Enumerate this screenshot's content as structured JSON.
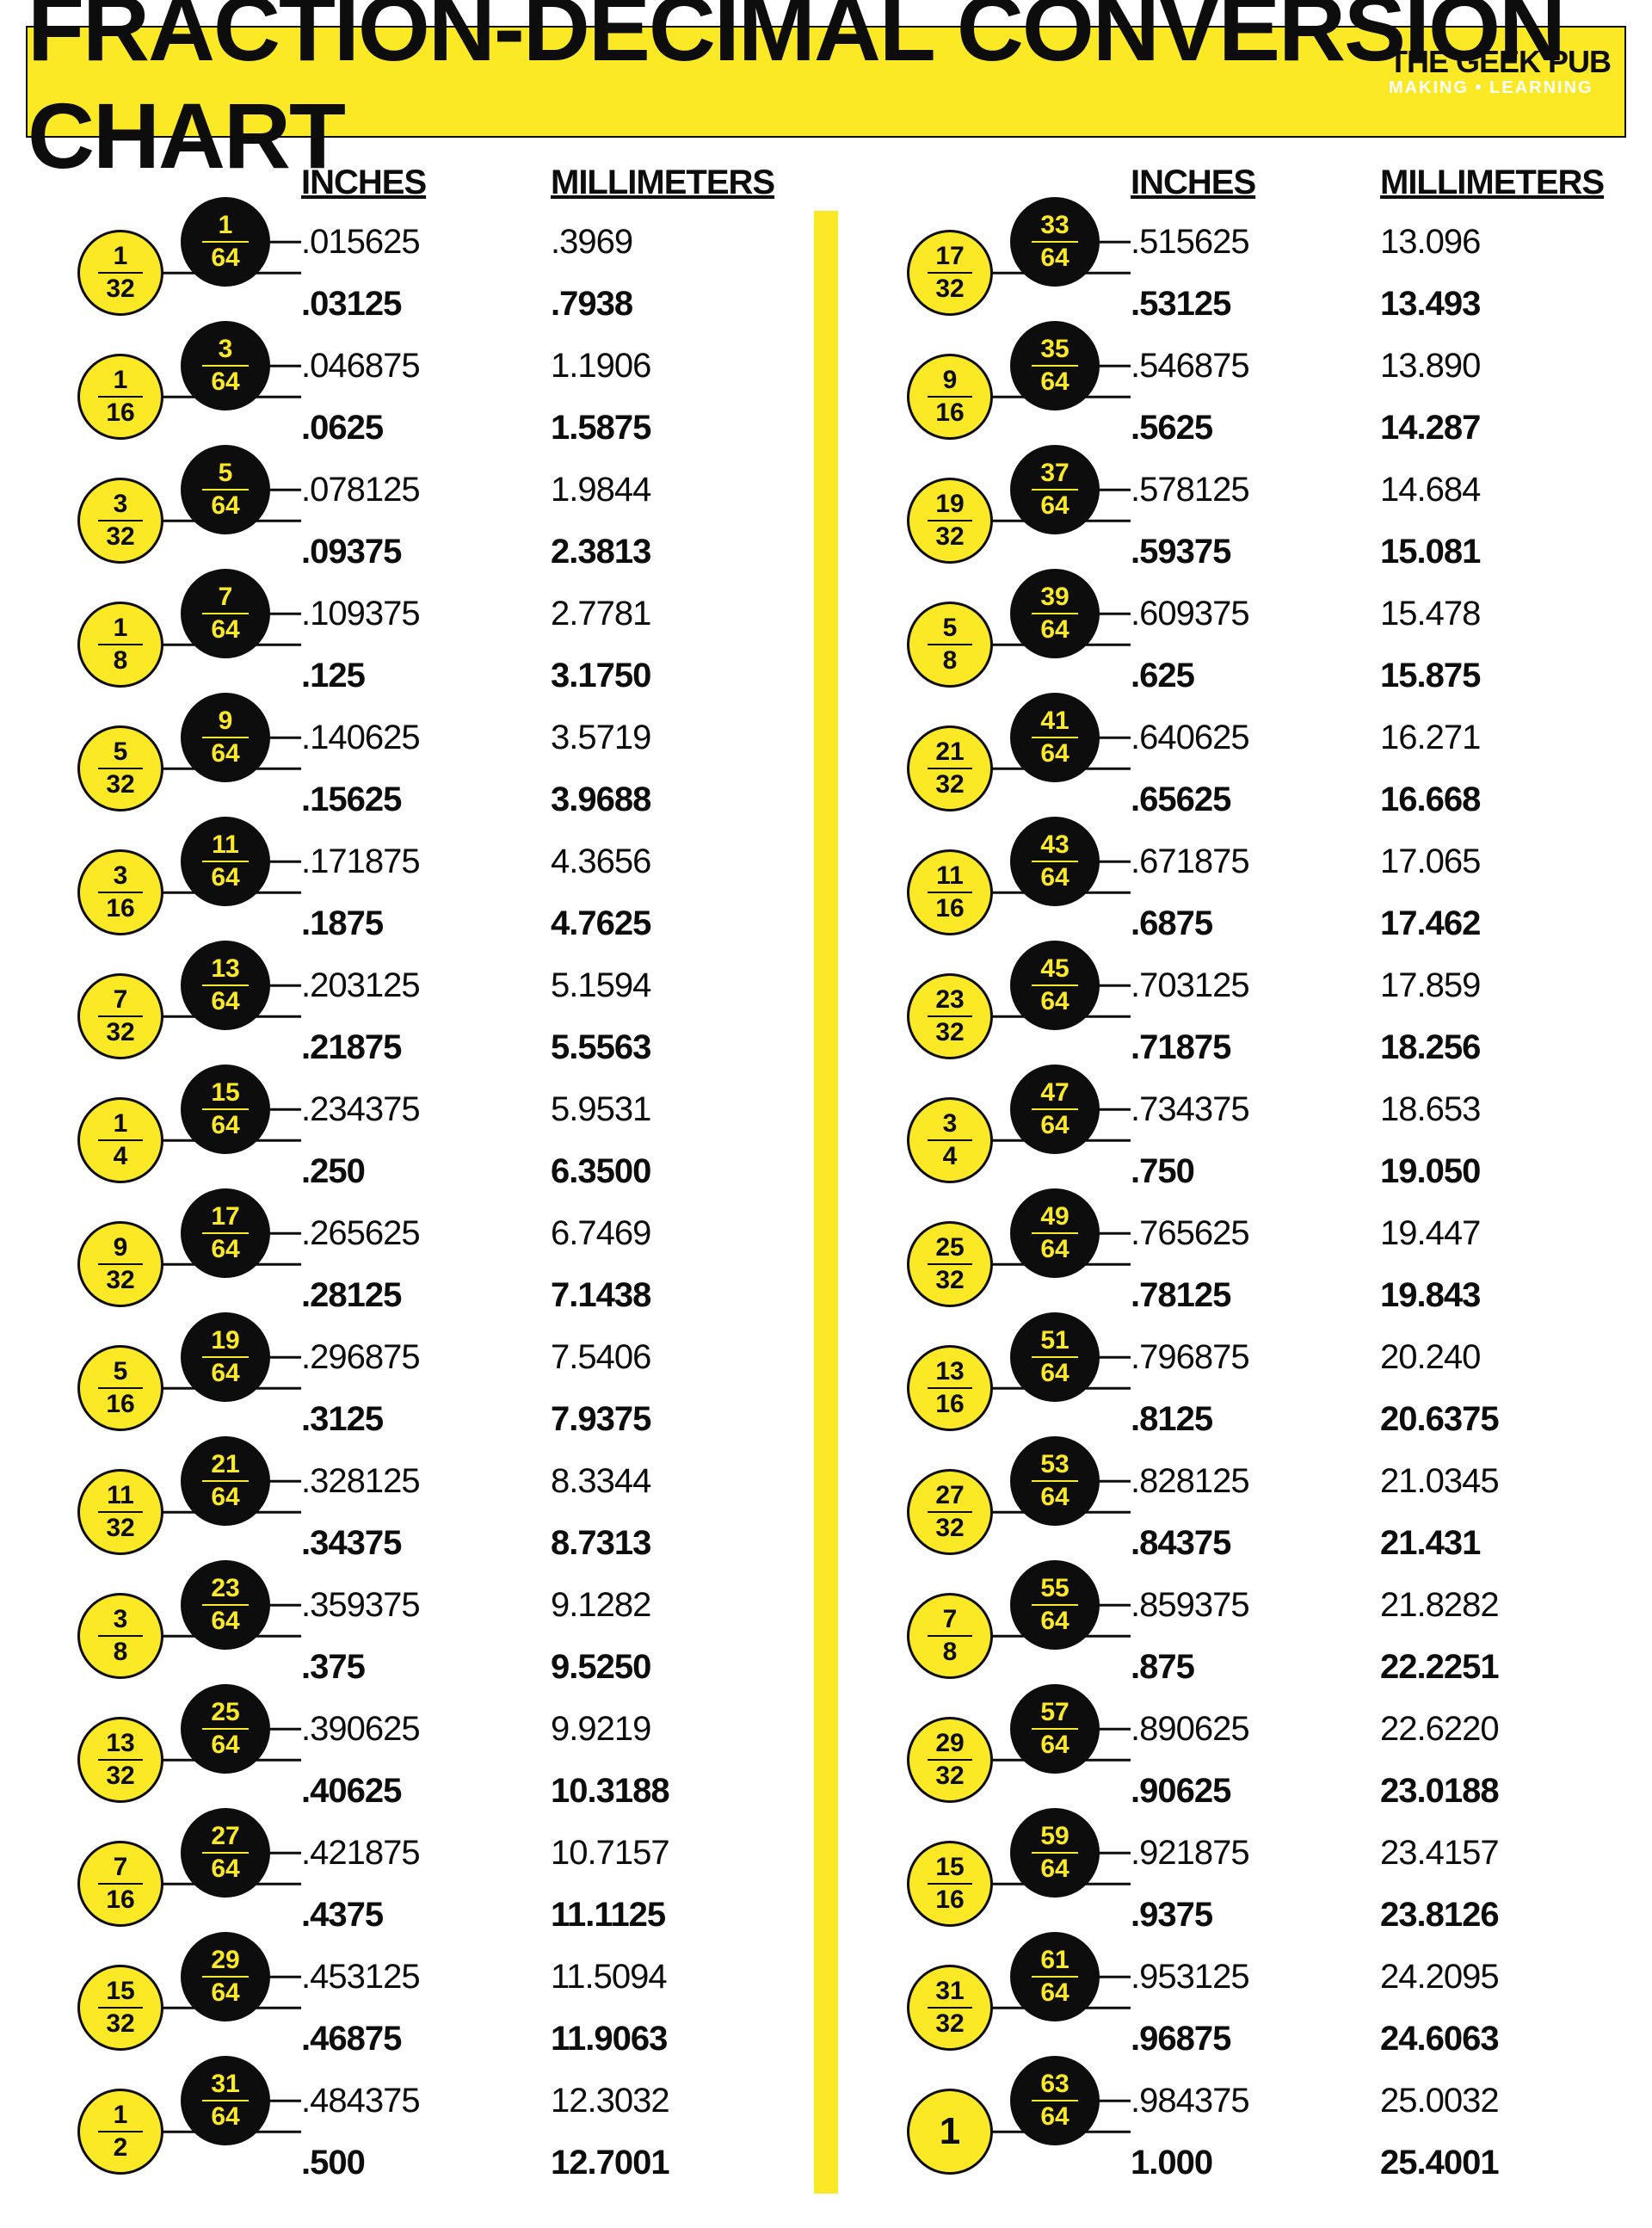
{
  "colors": {
    "yellow": "#fce925",
    "black": "#0d0d0d",
    "white": "#ffffff"
  },
  "header": {
    "title": "FRACTION-DECIMAL CONVERSION CHART",
    "brand_top": "THE GEEK PUB",
    "brand_sub": "MAKING • LEARNING"
  },
  "column_labels": {
    "inches": "INCHES",
    "mm": "MILLIMETERS"
  },
  "left_rows": [
    {
      "f64": "1/64",
      "fy": null,
      "in": ".015625",
      "mm": ".3969",
      "bold": false
    },
    {
      "f64": null,
      "fy": "1/32",
      "in": ".03125",
      "mm": ".7938",
      "bold": true
    },
    {
      "f64": "3/64",
      "fy": null,
      "in": ".046875",
      "mm": "1.1906",
      "bold": false
    },
    {
      "f64": null,
      "fy": "1/16",
      "in": ".0625",
      "mm": "1.5875",
      "bold": true
    },
    {
      "f64": "5/64",
      "fy": null,
      "in": ".078125",
      "mm": "1.9844",
      "bold": false
    },
    {
      "f64": null,
      "fy": "3/32",
      "in": ".09375",
      "mm": "2.3813",
      "bold": true
    },
    {
      "f64": "7/64",
      "fy": null,
      "in": ".109375",
      "mm": "2.7781",
      "bold": false
    },
    {
      "f64": null,
      "fy": "1/8",
      "in": ".125",
      "mm": "3.1750",
      "bold": true
    },
    {
      "f64": "9/64",
      "fy": null,
      "in": ".140625",
      "mm": "3.5719",
      "bold": false
    },
    {
      "f64": null,
      "fy": "5/32",
      "in": ".15625",
      "mm": "3.9688",
      "bold": true
    },
    {
      "f64": "11/64",
      "fy": null,
      "in": ".171875",
      "mm": "4.3656",
      "bold": false
    },
    {
      "f64": null,
      "fy": "3/16",
      "in": ".1875",
      "mm": "4.7625",
      "bold": true
    },
    {
      "f64": "13/64",
      "fy": null,
      "in": ".203125",
      "mm": "5.1594",
      "bold": false
    },
    {
      "f64": null,
      "fy": "7/32",
      "in": ".21875",
      "mm": "5.5563",
      "bold": true
    },
    {
      "f64": "15/64",
      "fy": null,
      "in": ".234375",
      "mm": "5.9531",
      "bold": false
    },
    {
      "f64": null,
      "fy": "1/4",
      "in": ".250",
      "mm": "6.3500",
      "bold": true
    },
    {
      "f64": "17/64",
      "fy": null,
      "in": ".265625",
      "mm": "6.7469",
      "bold": false
    },
    {
      "f64": null,
      "fy": "9/32",
      "in": ".28125",
      "mm": "7.1438",
      "bold": true
    },
    {
      "f64": "19/64",
      "fy": null,
      "in": ".296875",
      "mm": "7.5406",
      "bold": false
    },
    {
      "f64": null,
      "fy": "5/16",
      "in": ".3125",
      "mm": "7.9375",
      "bold": true
    },
    {
      "f64": "21/64",
      "fy": null,
      "in": ".328125",
      "mm": "8.3344",
      "bold": false
    },
    {
      "f64": null,
      "fy": "11/32",
      "in": ".34375",
      "mm": "8.7313",
      "bold": true
    },
    {
      "f64": "23/64",
      "fy": null,
      "in": ".359375",
      "mm": "9.1282",
      "bold": false
    },
    {
      "f64": null,
      "fy": "3/8",
      "in": ".375",
      "mm": "9.5250",
      "bold": true
    },
    {
      "f64": "25/64",
      "fy": null,
      "in": ".390625",
      "mm": "9.9219",
      "bold": false
    },
    {
      "f64": null,
      "fy": "13/32",
      "in": ".40625",
      "mm": "10.3188",
      "bold": true
    },
    {
      "f64": "27/64",
      "fy": null,
      "in": ".421875",
      "mm": "10.7157",
      "bold": false
    },
    {
      "f64": null,
      "fy": "7/16",
      "in": ".4375",
      "mm": "11.1125",
      "bold": true
    },
    {
      "f64": "29/64",
      "fy": null,
      "in": ".453125",
      "mm": "11.5094",
      "bold": false
    },
    {
      "f64": null,
      "fy": "15/32",
      "in": ".46875",
      "mm": "11.9063",
      "bold": true
    },
    {
      "f64": "31/64",
      "fy": null,
      "in": ".484375",
      "mm": "12.3032",
      "bold": false
    },
    {
      "f64": null,
      "fy": "1/2",
      "in": ".500",
      "mm": "12.7001",
      "bold": true
    }
  ],
  "right_rows": [
    {
      "f64": "33/64",
      "fy": null,
      "in": ".515625",
      "mm": "13.096",
      "bold": false
    },
    {
      "f64": null,
      "fy": "17/32",
      "in": ".53125",
      "mm": "13.493",
      "bold": true
    },
    {
      "f64": "35/64",
      "fy": null,
      "in": ".546875",
      "mm": "13.890",
      "bold": false
    },
    {
      "f64": null,
      "fy": "9/16",
      "in": ".5625",
      "mm": "14.287",
      "bold": true
    },
    {
      "f64": "37/64",
      "fy": null,
      "in": ".578125",
      "mm": "14.684",
      "bold": false
    },
    {
      "f64": null,
      "fy": "19/32",
      "in": ".59375",
      "mm": "15.081",
      "bold": true
    },
    {
      "f64": "39/64",
      "fy": null,
      "in": ".609375",
      "mm": "15.478",
      "bold": false
    },
    {
      "f64": null,
      "fy": "5/8",
      "in": ".625",
      "mm": "15.875",
      "bold": true
    },
    {
      "f64": "41/64",
      "fy": null,
      "in": ".640625",
      "mm": "16.271",
      "bold": false
    },
    {
      "f64": null,
      "fy": "21/32",
      "in": ".65625",
      "mm": "16.668",
      "bold": true
    },
    {
      "f64": "43/64",
      "fy": null,
      "in": ".671875",
      "mm": "17.065",
      "bold": false
    },
    {
      "f64": null,
      "fy": "11/16",
      "in": ".6875",
      "mm": "17.462",
      "bold": true
    },
    {
      "f64": "45/64",
      "fy": null,
      "in": ".703125",
      "mm": "17.859",
      "bold": false
    },
    {
      "f64": null,
      "fy": "23/32",
      "in": ".71875",
      "mm": "18.256",
      "bold": true
    },
    {
      "f64": "47/64",
      "fy": null,
      "in": ".734375",
      "mm": "18.653",
      "bold": false
    },
    {
      "f64": null,
      "fy": "3/4",
      "in": ".750",
      "mm": "19.050",
      "bold": true
    },
    {
      "f64": "49/64",
      "fy": null,
      "in": ".765625",
      "mm": "19.447",
      "bold": false
    },
    {
      "f64": null,
      "fy": "25/32",
      "in": ".78125",
      "mm": "19.843",
      "bold": true
    },
    {
      "f64": "51/64",
      "fy": null,
      "in": ".796875",
      "mm": "20.240",
      "bold": false
    },
    {
      "f64": null,
      "fy": "13/16",
      "in": ".8125",
      "mm": "20.6375",
      "bold": true
    },
    {
      "f64": "53/64",
      "fy": null,
      "in": ".828125",
      "mm": "21.0345",
      "bold": false
    },
    {
      "f64": null,
      "fy": "27/32",
      "in": ".84375",
      "mm": "21.431",
      "bold": true
    },
    {
      "f64": "55/64",
      "fy": null,
      "in": ".859375",
      "mm": "21.8282",
      "bold": false
    },
    {
      "f64": null,
      "fy": "7/8",
      "in": ".875",
      "mm": "22.2251",
      "bold": true
    },
    {
      "f64": "57/64",
      "fy": null,
      "in": ".890625",
      "mm": "22.6220",
      "bold": false
    },
    {
      "f64": null,
      "fy": "29/32",
      "in": ".90625",
      "mm": "23.0188",
      "bold": true
    },
    {
      "f64": "59/64",
      "fy": null,
      "in": ".921875",
      "mm": "23.4157",
      "bold": false
    },
    {
      "f64": null,
      "fy": "15/16",
      "in": ".9375",
      "mm": "23.8126",
      "bold": true
    },
    {
      "f64": "61/64",
      "fy": null,
      "in": ".953125",
      "mm": "24.2095",
      "bold": false
    },
    {
      "f64": null,
      "fy": "31/32",
      "in": ".96875",
      "mm": "24.6063",
      "bold": true
    },
    {
      "f64": "63/64",
      "fy": null,
      "in": ".984375",
      "mm": "25.0032",
      "bold": false
    },
    {
      "f64": null,
      "fy": "1",
      "in": "1.000",
      "mm": "25.4001",
      "bold": true
    }
  ]
}
